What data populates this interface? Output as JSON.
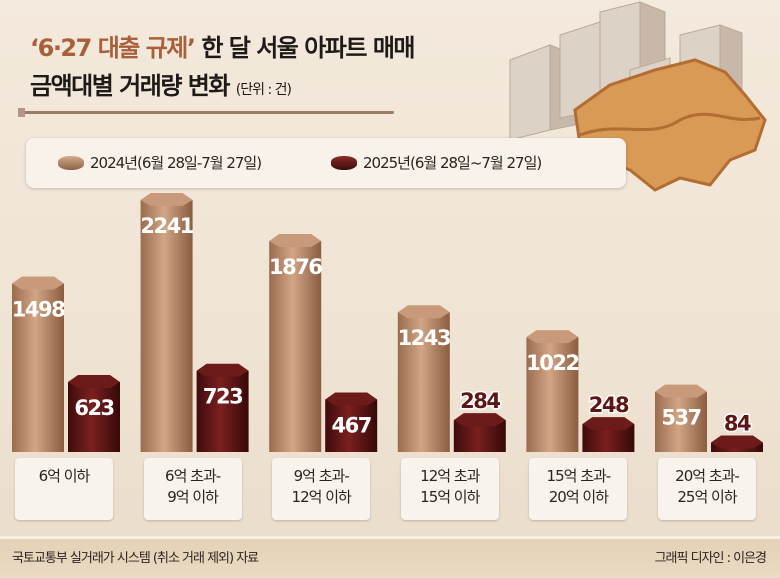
{
  "title": {
    "accent": "‘6·27 대출 규제’",
    "line1_rest": " 한 달 서울 아파트 매매",
    "line2": "금액대별 거래량 변화",
    "unit": "(단위 : 건)"
  },
  "chart_data": {
    "type": "bar",
    "title": "‘6·27 대출 규제’ 한 달 서울 아파트 매매 금액대별 거래량 변화",
    "unit": "건",
    "categories": [
      "6억 이하",
      "6억 초과-\n9억 이하",
      "9억 초과-\n12억 이하",
      "12억 초과\n15억 이하",
      "15억 초과-\n20억 이하",
      "20억 초과-\n25억 이하"
    ],
    "series": [
      {
        "name": "2024년(6월 28일-7월 27일)",
        "color": "#b88a6a",
        "values": [
          1498,
          2241,
          1876,
          1243,
          1022,
          537
        ]
      },
      {
        "name": "2025년(6월 28일~7월 27일)",
        "color": "#5e1515",
        "values": [
          623,
          723,
          467,
          284,
          248,
          84
        ]
      }
    ],
    "ylim": [
      0,
      2241
    ],
    "grid": false,
    "legend": "top"
  },
  "footer": {
    "source": "국토교통부 실거래가 시스템 (취소 거래 제외) 자료",
    "credit": "그래픽 디자인 : 이은경"
  }
}
